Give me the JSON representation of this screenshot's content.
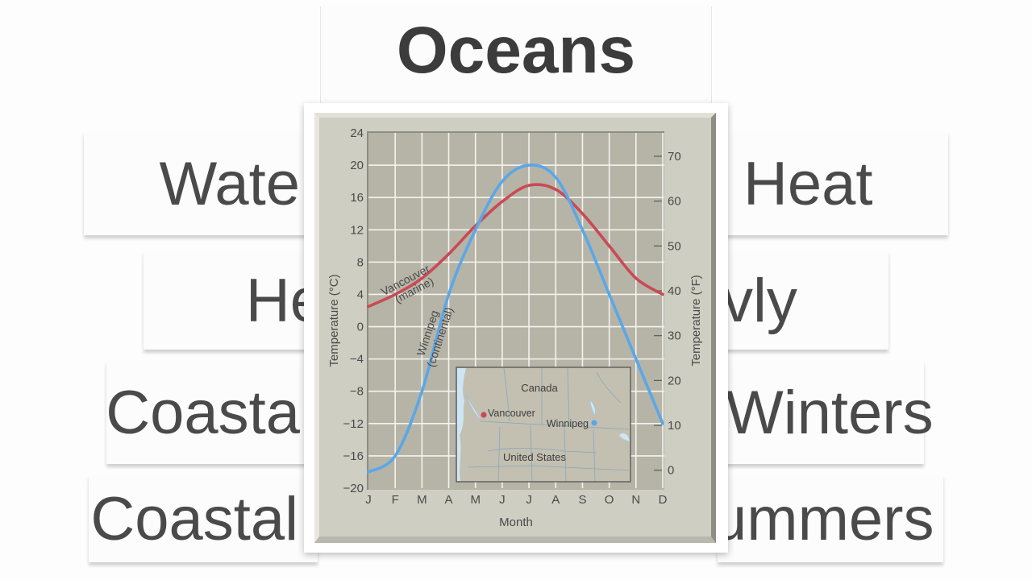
{
  "slide": {
    "title": "Oceans",
    "left_phrases": [
      "Wate",
      "He",
      "Coasta",
      "Coastal"
    ],
    "right_phrases": [
      "Heat",
      "vly",
      "Winters",
      "ummers"
    ]
  },
  "chart_data": {
    "type": "line",
    "title": "",
    "xlabel": "Month",
    "ylabel": "Temperature (°C)",
    "ylabel_right": "Temperature (°F)",
    "categories": [
      "J",
      "F",
      "M",
      "A",
      "M",
      "J",
      "J",
      "A",
      "S",
      "O",
      "N",
      "D"
    ],
    "yticks": [
      24,
      20,
      16,
      12,
      8,
      4,
      0,
      -4,
      -8,
      -12,
      -16,
      -20
    ],
    "yticks_right": [
      70,
      60,
      50,
      40,
      30,
      20,
      10,
      0
    ],
    "ylim": [
      -20,
      24
    ],
    "grid": true,
    "series": [
      {
        "name": "Vancouver (marine)",
        "label_line1": "Vancouver",
        "label_line2": "(marine)",
        "color": "#c94a55",
        "values": [
          2.5,
          4,
          6,
          9,
          12.5,
          15.5,
          17.5,
          17,
          14,
          10,
          6,
          4
        ]
      },
      {
        "name": "Winnipeg (continental)",
        "label_line1": "Winnipeg",
        "label_line2": "(continental)",
        "color": "#5aa7e8",
        "values": [
          -18,
          -16,
          -8,
          4,
          12,
          18,
          20,
          18.5,
          12,
          4,
          -4,
          -12
        ]
      }
    ],
    "inset_map": {
      "labels": {
        "country_north": "Canada",
        "country_south": "United States",
        "city1": "Vancouver",
        "city2": "Winnipeg"
      },
      "city1_color": "#c94a55",
      "city2_color": "#5aa7e8"
    }
  }
}
